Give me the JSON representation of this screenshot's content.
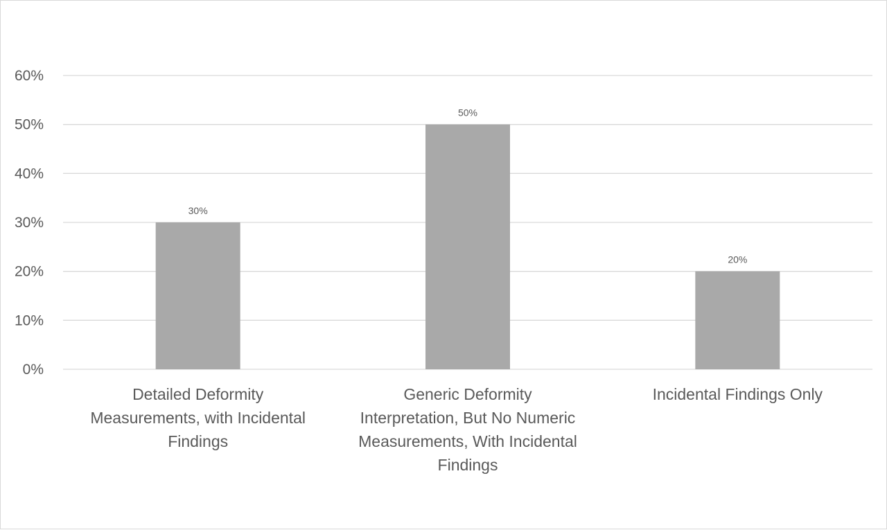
{
  "chart_data": {
    "type": "bar",
    "categories": [
      "Detailed Deformity Measurements, with Incidental Findings",
      "Generic Deformity Interpretation, But No Numeric Measurements, With Incidental Findings",
      "Incidental Findings Only"
    ],
    "category_label_lines": [
      [
        "Detailed Deformity",
        "Measurements, with Incidental",
        "Findings"
      ],
      [
        "Generic Deformity",
        "Interpretation, But No Numeric",
        "Measurements, With Incidental",
        "Findings"
      ],
      [
        "Incidental Findings Only"
      ]
    ],
    "values": [
      30,
      50,
      20
    ],
    "data_labels": [
      "30%",
      "50%",
      "20%"
    ],
    "y_ticks": [
      "0%",
      "10%",
      "20%",
      "30%",
      "40%",
      "50%",
      "60%"
    ],
    "ylim": [
      0,
      60
    ],
    "ytick_step": 10,
    "title": "",
    "xlabel": "",
    "ylabel": "",
    "grid": true,
    "legend": "none",
    "bar_color": "#a9a9a9",
    "grid_color": "#d9d9d9",
    "text_color": "#595959"
  }
}
